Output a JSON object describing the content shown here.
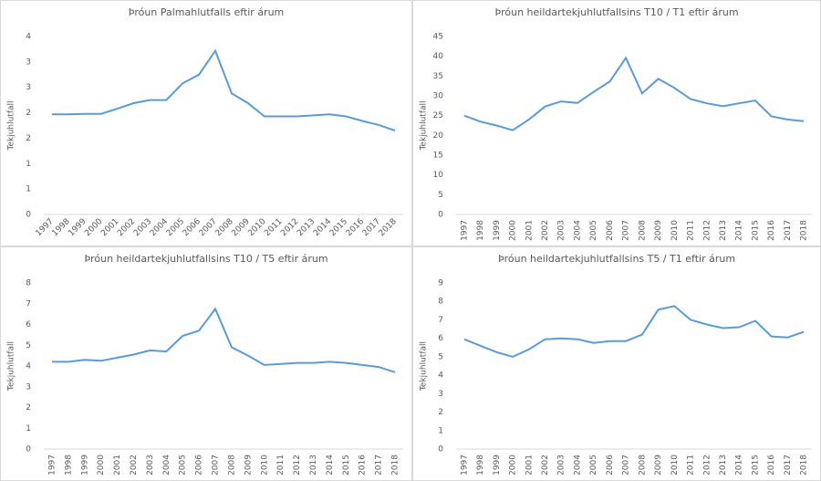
{
  "chart_data": [
    {
      "type": "line",
      "title": "Þróun Palmahlutfalls eftir árum",
      "y_label": "Tekjuhlutfall",
      "color": "#5b9bd5",
      "xlabel_rotation": -45,
      "categories": [
        "1997",
        "1998",
        "1999",
        "2000",
        "2001",
        "2002",
        "2003",
        "2004",
        "2005",
        "2006",
        "2007",
        "2008",
        "2009",
        "2010",
        "2011",
        "2012",
        "2013",
        "2014",
        "2015",
        "2016",
        "2017",
        "2018"
      ],
      "values": [
        1.97,
        1.97,
        1.98,
        1.98,
        2.08,
        2.19,
        2.25,
        2.25,
        2.58,
        2.75,
        3.22,
        2.38,
        2.19,
        1.93,
        1.93,
        1.93,
        1.95,
        1.97,
        1.93,
        1.84,
        1.76,
        1.65
      ],
      "ylim": [
        0,
        3.5
      ],
      "yticks": [
        0,
        {
          "value": 0.5,
          "label": "1"
        },
        1,
        {
          "value": 1.5,
          "label": "2"
        },
        2,
        {
          "value": 2.5,
          "label": "3"
        },
        3,
        {
          "value": 3.5,
          "label": "4"
        }
      ]
    },
    {
      "type": "line",
      "title": "Þróun heildartekjuhlutfallsins T10 / T1 eftir árum",
      "y_label": "Tekjuhlutfall",
      "color": "#5b9bd5",
      "xlabel_rotation": -90,
      "categories": [
        "1997",
        "1998",
        "1999",
        "2000",
        "2001",
        "2002",
        "2003",
        "2004",
        "2005",
        "2006",
        "2007",
        "2008",
        "2009",
        "2010",
        "2011",
        "2012",
        "2013",
        "2014",
        "2015",
        "2016",
        "2017",
        "2018"
      ],
      "values": [
        25,
        23.5,
        22.5,
        21.3,
        24,
        27.3,
        28.6,
        28.2,
        31,
        33.6,
        39.6,
        30.6,
        34.3,
        32,
        29.2,
        28.1,
        27.4,
        28.1,
        28.8,
        24.8,
        24,
        23.6
      ],
      "ylim": [
        0,
        45
      ],
      "yticks": [
        0,
        5,
        10,
        15,
        20,
        25,
        30,
        35,
        40,
        45
      ]
    },
    {
      "type": "line",
      "title": "Þróun heildartekjuhlutfallsins T10 / T5 eftir árum",
      "y_label": "Tekjuhlutfall",
      "color": "#5b9bd5",
      "xlabel_rotation": -90,
      "categories": [
        "1997",
        "1998",
        "1999",
        "2000",
        "2001",
        "2002",
        "2003",
        "2004",
        "2005",
        "2006",
        "2007",
        "2008",
        "2009",
        "2010",
        "2011",
        "2012",
        "2013",
        "2014",
        "2015",
        "2016",
        "2017",
        "2018"
      ],
      "values": [
        4.2,
        4.2,
        4.3,
        4.25,
        4.4,
        4.55,
        4.75,
        4.7,
        5.45,
        5.7,
        6.75,
        4.9,
        4.5,
        4.05,
        4.1,
        4.15,
        4.15,
        4.2,
        4.15,
        4.05,
        3.95,
        3.7
      ],
      "ylim": [
        0,
        8
      ],
      "yticks": [
        0,
        1,
        2,
        3,
        4,
        5,
        6,
        7,
        8
      ]
    },
    {
      "type": "line",
      "title": "Þróun heildartekjuhlutfallsins T5 / T1 eftir árum",
      "y_label": "Tekjuhlutfall",
      "color": "#5b9bd5",
      "xlabel_rotation": -90,
      "categories": [
        "1997",
        "1998",
        "1999",
        "2000",
        "2001",
        "2002",
        "2003",
        "2004",
        "2005",
        "2006",
        "2007",
        "2008",
        "2009",
        "2010",
        "2011",
        "2012",
        "2013",
        "2014",
        "2015",
        "2016",
        "2017",
        "2018"
      ],
      "values": [
        5.95,
        5.6,
        5.25,
        5.0,
        5.4,
        5.95,
        6.0,
        5.95,
        5.75,
        5.85,
        5.85,
        6.2,
        7.55,
        7.75,
        7.0,
        6.75,
        6.55,
        6.6,
        6.95,
        6.1,
        6.05,
        6.35
      ],
      "ylim": [
        0,
        9
      ],
      "yticks": [
        0,
        1,
        2,
        3,
        4,
        5,
        6,
        7,
        8,
        9
      ]
    }
  ]
}
